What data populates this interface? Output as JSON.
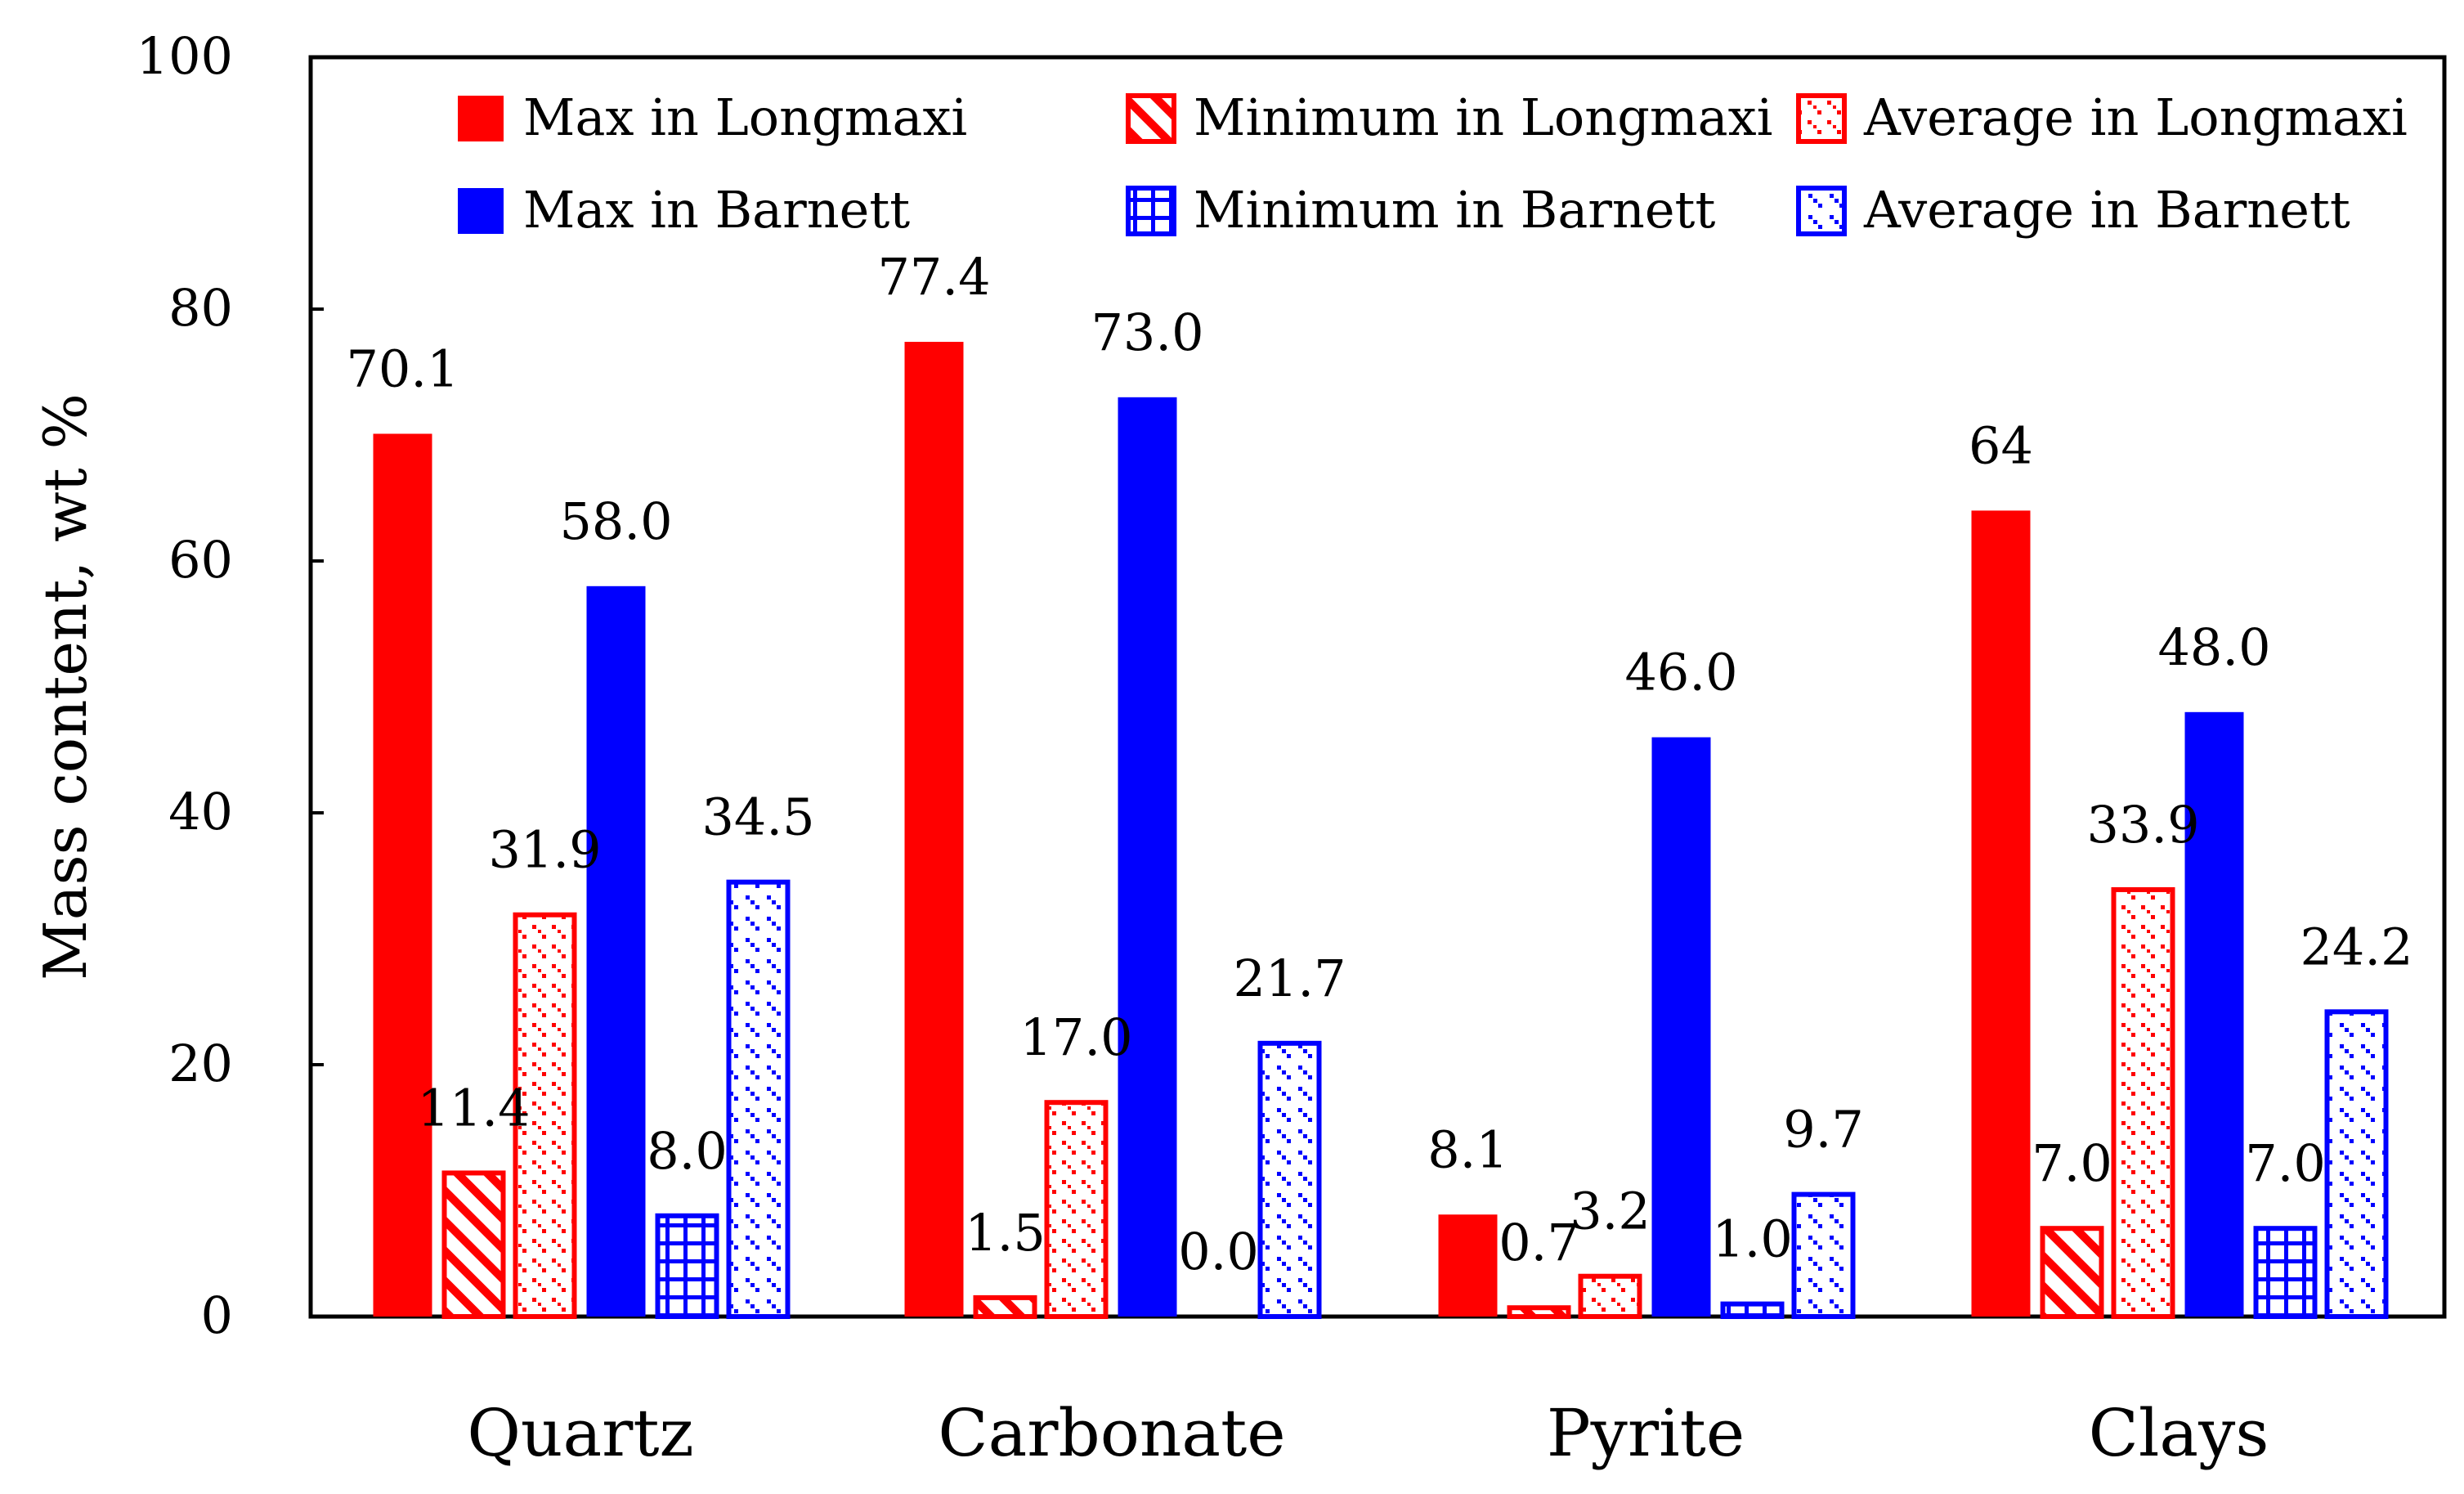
{
  "colors": {
    "longmaxi": "#ff0000",
    "barnett": "#0000ff",
    "axis": "#000000"
  },
  "chart_data": {
    "type": "bar",
    "ylabel": "Mass content, wt %",
    "xlabel": "",
    "ylim": [
      0,
      100
    ],
    "yticks": [
      0,
      20,
      40,
      60,
      80,
      100
    ],
    "categories": [
      "Quartz",
      "Carbonate",
      "Pyrite",
      "Clays"
    ],
    "grid": false,
    "legend_position": "top",
    "series": [
      {
        "name": "Max in Longmaxi",
        "values": [
          70.1,
          77.4,
          8.1,
          64
        ],
        "labels": [
          "70.1",
          "77.4",
          "8.1",
          "64"
        ],
        "color": "#ff0000",
        "fill": "solid"
      },
      {
        "name": "Minimum in Longmaxi",
        "values": [
          11.4,
          1.5,
          0.7,
          7.0
        ],
        "labels": [
          "11.4",
          "1.5",
          "0.7",
          "7.0"
        ],
        "color": "#ff0000",
        "fill": "diagonal-hatch"
      },
      {
        "name": "Average in Longmaxi",
        "values": [
          31.9,
          17.0,
          3.2,
          33.9
        ],
        "labels": [
          "31.9",
          "17.0",
          "3.2",
          "33.9"
        ],
        "color": "#ff0000",
        "fill": "dots"
      },
      {
        "name": "Max in Barnett",
        "values": [
          58.0,
          73.0,
          46.0,
          48.0
        ],
        "labels": [
          "58.0",
          "73.0",
          "46.0",
          "48.0"
        ],
        "color": "#0000ff",
        "fill": "solid"
      },
      {
        "name": "Minimum in Barnett",
        "values": [
          8.0,
          0.0,
          1.0,
          7.0
        ],
        "labels": [
          "8.0",
          "0.0",
          "1.0",
          "7.0"
        ],
        "color": "#0000ff",
        "fill": "grid"
      },
      {
        "name": "Average in Barnett",
        "values": [
          34.5,
          21.7,
          9.7,
          24.2
        ],
        "labels": [
          "34.5",
          "21.7",
          "9.7",
          "24.2"
        ],
        "color": "#0000ff",
        "fill": "dashes"
      }
    ]
  }
}
